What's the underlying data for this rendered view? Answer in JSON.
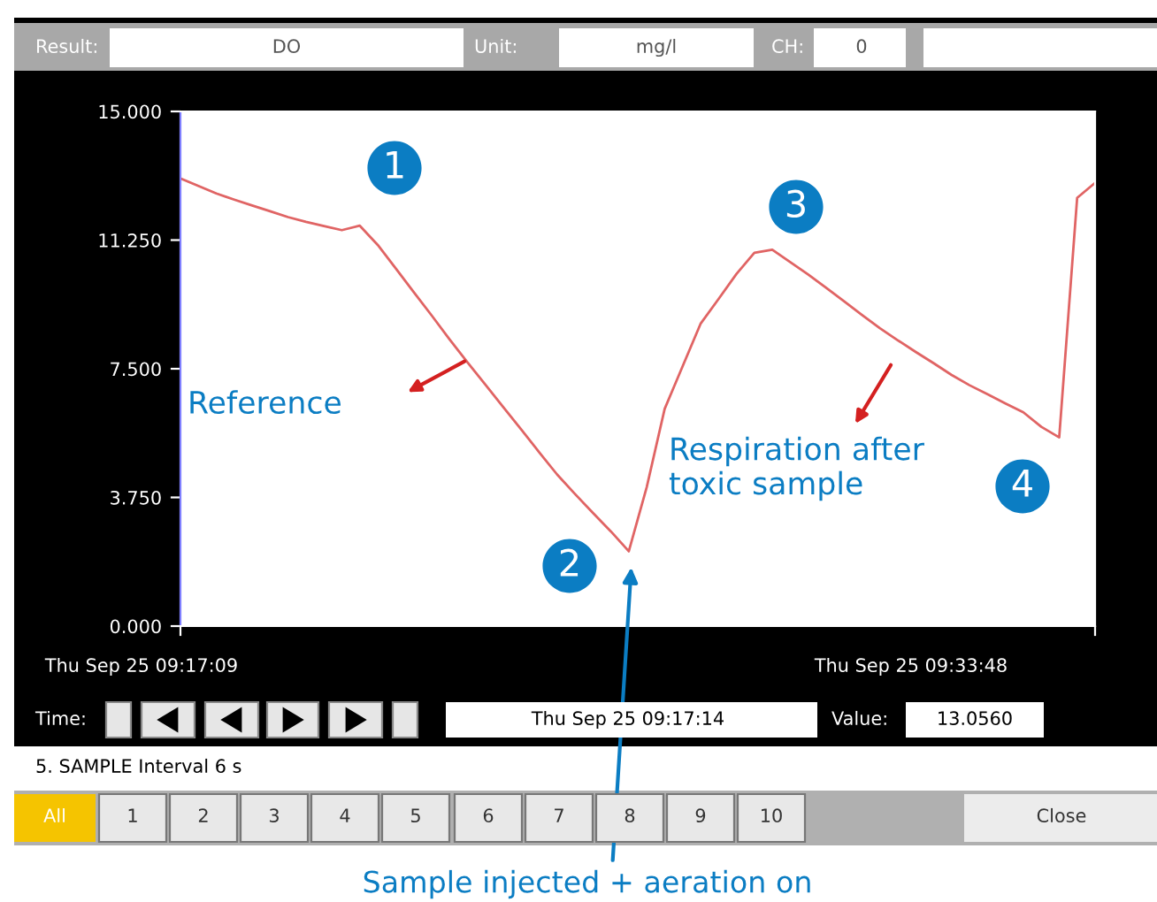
{
  "chart_data": {
    "type": "line",
    "categories": [
      null,
      null,
      null,
      null,
      null,
      null,
      null,
      null,
      null,
      null,
      null,
      null,
      null,
      null,
      null,
      null,
      null,
      null,
      null,
      null,
      null,
      null,
      null,
      null,
      null,
      null,
      null,
      null,
      null,
      null,
      null,
      null,
      null,
      null,
      null,
      null,
      null,
      null,
      null,
      null,
      null,
      null,
      null,
      null,
      null,
      null,
      null,
      null,
      null,
      null,
      null,
      null
    ],
    "series": [
      {
        "color": "#e06464",
        "values": [
          13.05,
          12.83,
          12.61,
          12.43,
          12.26,
          12.09,
          11.92,
          11.78,
          11.66,
          11.54,
          11.67,
          11.11,
          10.43,
          9.74,
          9.06,
          8.36,
          7.69,
          7.04,
          6.38,
          5.73,
          5.07,
          4.42,
          3.85,
          3.3,
          2.76,
          2.18,
          4.05,
          6.33,
          7.57,
          8.81,
          9.53,
          10.26,
          10.88,
          10.97,
          10.61,
          10.25,
          9.86,
          9.47,
          9.07,
          8.68,
          8.33,
          7.99,
          7.66,
          7.32,
          7.02,
          6.76,
          6.49,
          6.23,
          5.81,
          5.5,
          12.48,
          12.92
        ]
      }
    ],
    "ylim": [
      0,
      15
    ],
    "yticks": [
      {
        "value": 0,
        "label": "0.000"
      },
      {
        "value": 3.75,
        "label": "3.750"
      },
      {
        "value": 7.5,
        "label": "7.500"
      },
      {
        "value": 11.25,
        "label": "11.250"
      },
      {
        "value": 15,
        "label": "15.000"
      }
    ],
    "grid": false,
    "legend": false,
    "marker": "none",
    "line_style": "solid",
    "annotations": [
      "1",
      "2",
      "3",
      "4",
      "Reference",
      "Respiration after\ntoxic sample",
      "Sample injected + aeration on",
      "Thu Sep 25 09:17:09",
      "Thu Sep 25 09:33:48",
      "Result:",
      "DO",
      "Unit:",
      "mg/l",
      "CH:",
      "0",
      "Time:",
      "Thu Sep 25 09:17:14",
      "Value:",
      "13.0560",
      "5. SAMPLE Interval 6 s",
      "All",
      "1",
      "2",
      "3",
      "4",
      "5",
      "6",
      "7",
      "8",
      "9",
      "10",
      "Close"
    ]
  }
}
